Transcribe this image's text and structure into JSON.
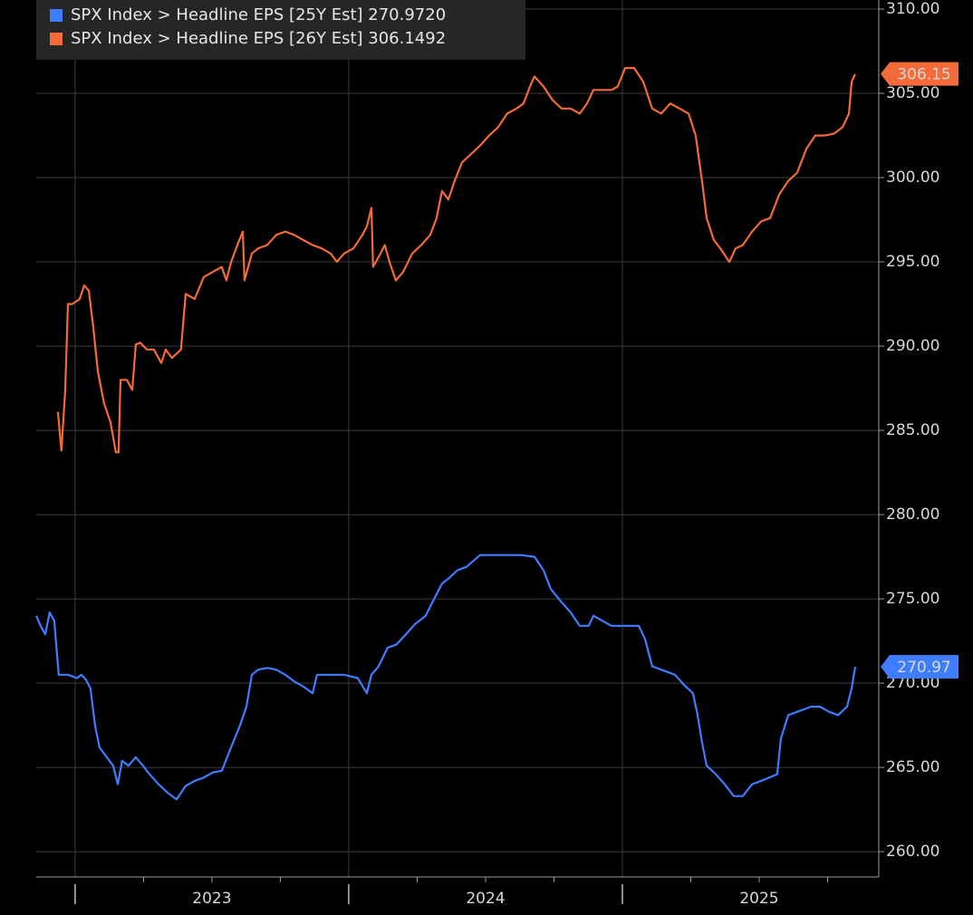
{
  "chart_data": {
    "type": "line",
    "xlim": [
      2022.858,
      2025.937
    ],
    "xticks": [
      2023,
      2024,
      2025
    ],
    "minor_xticks": [
      2022.75,
      2023.25,
      2023.5,
      2023.75,
      2024.25,
      2024.5,
      2024.75,
      2025.25,
      2025.5,
      2025.75
    ],
    "ylim": [
      258.5,
      310.54
    ],
    "yticks": [
      {
        "value": 260,
        "label": "260.00"
      },
      {
        "value": 265,
        "label": "265.00"
      },
      {
        "value": 270,
        "label": "270.00"
      },
      {
        "value": 275,
        "label": "275.00"
      },
      {
        "value": 280,
        "label": "280.00"
      },
      {
        "value": 285,
        "label": "285.00"
      },
      {
        "value": 290,
        "label": "290.00"
      },
      {
        "value": 295,
        "label": "295.00"
      },
      {
        "value": 300,
        "label": "300.00"
      },
      {
        "value": 305,
        "label": "305.00"
      },
      {
        "value": 310,
        "label": "310.00"
      }
    ],
    "grid": true,
    "series": [
      {
        "name": "SPX Index > Headline EPS [25Y Est]",
        "legend_label": "270.9720",
        "end_label": "270.97",
        "color": "#3f7dff",
        "x": [
          2022.858,
          2022.874,
          2022.891,
          2022.907,
          2022.924,
          2022.94,
          2022.974,
          2023.007,
          2023.023,
          2023.04,
          2023.056,
          2023.073,
          2023.089,
          2023.116,
          2023.139,
          2023.156,
          2023.172,
          2023.195,
          2023.222,
          2023.248,
          2023.272,
          2023.305,
          2023.338,
          2023.371,
          2023.404,
          2023.437,
          2023.47,
          2023.503,
          2023.536,
          2023.57,
          2023.603,
          2023.626,
          2023.646,
          2023.669,
          2023.702,
          2023.735,
          2023.768,
          2023.801,
          2023.834,
          2023.868,
          2023.884,
          2023.917,
          2023.95,
          2023.983,
          2024.033,
          2024.066,
          2024.083,
          2024.109,
          2024.142,
          2024.175,
          2024.209,
          2024.242,
          2024.281,
          2024.315,
          2024.341,
          2024.364,
          2024.397,
          2024.43,
          2024.48,
          2024.53,
          2024.579,
          2024.629,
          2024.679,
          2024.712,
          2024.738,
          2024.778,
          2024.811,
          2024.844,
          2024.877,
          2024.894,
          2024.927,
          2024.96,
          2025.01,
          2025.06,
          2025.083,
          2025.109,
          2025.142,
          2025.192,
          2025.225,
          2025.258,
          2025.275,
          2025.291,
          2025.308,
          2025.341,
          2025.374,
          2025.407,
          2025.44,
          2025.474,
          2025.523,
          2025.566,
          2025.579,
          2025.606,
          2025.639,
          2025.689,
          2025.722,
          2025.755,
          2025.788,
          2025.821,
          2025.838,
          2025.851
        ],
        "values": [
          274.0,
          273.4,
          272.9,
          274.2,
          273.7,
          270.5,
          270.5,
          270.3,
          270.5,
          270.2,
          269.7,
          267.5,
          266.2,
          265.6,
          265.1,
          264.0,
          265.4,
          265.1,
          265.6,
          265.1,
          264.6,
          264.0,
          263.5,
          263.1,
          263.9,
          264.2,
          264.4,
          264.7,
          264.8,
          266.2,
          267.5,
          268.6,
          270.5,
          270.8,
          270.9,
          270.8,
          270.5,
          270.1,
          269.8,
          269.4,
          270.5,
          270.5,
          270.5,
          270.5,
          270.3,
          269.4,
          270.5,
          271.0,
          272.1,
          272.3,
          272.9,
          273.5,
          274.0,
          275.1,
          275.9,
          276.2,
          276.7,
          276.9,
          277.6,
          277.6,
          277.6,
          277.6,
          277.5,
          276.7,
          275.6,
          274.8,
          274.2,
          273.4,
          273.4,
          274.0,
          273.7,
          273.4,
          273.4,
          273.4,
          272.6,
          271.0,
          270.8,
          270.5,
          269.9,
          269.4,
          268.1,
          266.5,
          265.1,
          264.6,
          264.0,
          263.3,
          263.3,
          264.0,
          264.3,
          264.6,
          266.7,
          268.1,
          268.3,
          268.6,
          268.6,
          268.3,
          268.1,
          268.6,
          269.7,
          270.972
        ]
      },
      {
        "name": "SPX Index > Headline EPS [26Y Est]",
        "legend_label": "306.1492",
        "end_label": "306.15",
        "color": "#f26b38",
        "x": [
          2022.937,
          2022.95,
          2022.964,
          2022.974,
          2022.99,
          2023.017,
          2023.033,
          2023.05,
          2023.066,
          2023.083,
          2023.106,
          2023.129,
          2023.149,
          2023.159,
          2023.166,
          2023.189,
          2023.209,
          2023.222,
          2023.238,
          2023.262,
          2023.288,
          2023.315,
          2023.331,
          2023.354,
          2023.387,
          2023.404,
          2023.437,
          2023.47,
          2023.503,
          2023.536,
          2023.553,
          2023.57,
          2023.593,
          2023.613,
          2023.619,
          2023.646,
          2023.669,
          2023.702,
          2023.735,
          2023.768,
          2023.801,
          2023.834,
          2023.868,
          2023.901,
          2023.934,
          2023.957,
          2023.983,
          2024.017,
          2024.05,
          2024.066,
          2024.083,
          2024.089,
          2024.116,
          2024.132,
          2024.149,
          2024.172,
          2024.199,
          2024.232,
          2024.265,
          2024.298,
          2024.321,
          2024.341,
          2024.364,
          2024.387,
          2024.414,
          2024.447,
          2024.48,
          2024.513,
          2024.546,
          2024.579,
          2024.613,
          2024.639,
          2024.662,
          2024.679,
          2024.712,
          2024.745,
          2024.778,
          2024.811,
          2024.844,
          2024.871,
          2024.894,
          2024.927,
          2024.96,
          2024.983,
          2025.01,
          2025.043,
          2025.076,
          2025.109,
          2025.142,
          2025.175,
          2025.209,
          2025.242,
          2025.268,
          2025.291,
          2025.308,
          2025.334,
          2025.358,
          2025.391,
          2025.414,
          2025.44,
          2025.474,
          2025.507,
          2025.54,
          2025.573,
          2025.606,
          2025.639,
          2025.672,
          2025.705,
          2025.738,
          2025.772,
          2025.805,
          2025.828,
          2025.838,
          2025.851
        ],
        "values": [
          286.1,
          283.8,
          287.4,
          292.5,
          292.5,
          292.8,
          293.6,
          293.3,
          291.2,
          288.5,
          286.6,
          285.5,
          283.7,
          283.7,
          288.0,
          288.0,
          287.4,
          290.1,
          290.2,
          289.8,
          289.8,
          289.0,
          289.8,
          289.3,
          289.8,
          293.1,
          292.8,
          294.1,
          294.4,
          294.7,
          293.9,
          295.0,
          296.0,
          296.8,
          293.9,
          295.5,
          295.8,
          296.0,
          296.6,
          296.8,
          296.6,
          296.3,
          296.0,
          295.8,
          295.5,
          295.0,
          295.5,
          295.8,
          296.6,
          297.1,
          298.2,
          294.7,
          295.5,
          296.0,
          295.0,
          293.9,
          294.4,
          295.5,
          296.0,
          296.6,
          297.6,
          299.2,
          298.7,
          299.8,
          300.9,
          301.4,
          301.9,
          302.5,
          303.0,
          303.8,
          304.1,
          304.4,
          305.4,
          306.0,
          305.4,
          304.6,
          304.1,
          304.1,
          303.8,
          304.4,
          305.2,
          305.2,
          305.2,
          305.4,
          306.5,
          306.5,
          305.7,
          304.1,
          303.8,
          304.4,
          304.1,
          303.8,
          302.5,
          299.8,
          297.6,
          296.3,
          295.8,
          295.0,
          295.8,
          296.0,
          296.8,
          297.4,
          297.6,
          299.0,
          299.8,
          300.3,
          301.7,
          302.5,
          302.5,
          302.6,
          303.0,
          303.8,
          305.7,
          306.1492
        ]
      }
    ]
  }
}
